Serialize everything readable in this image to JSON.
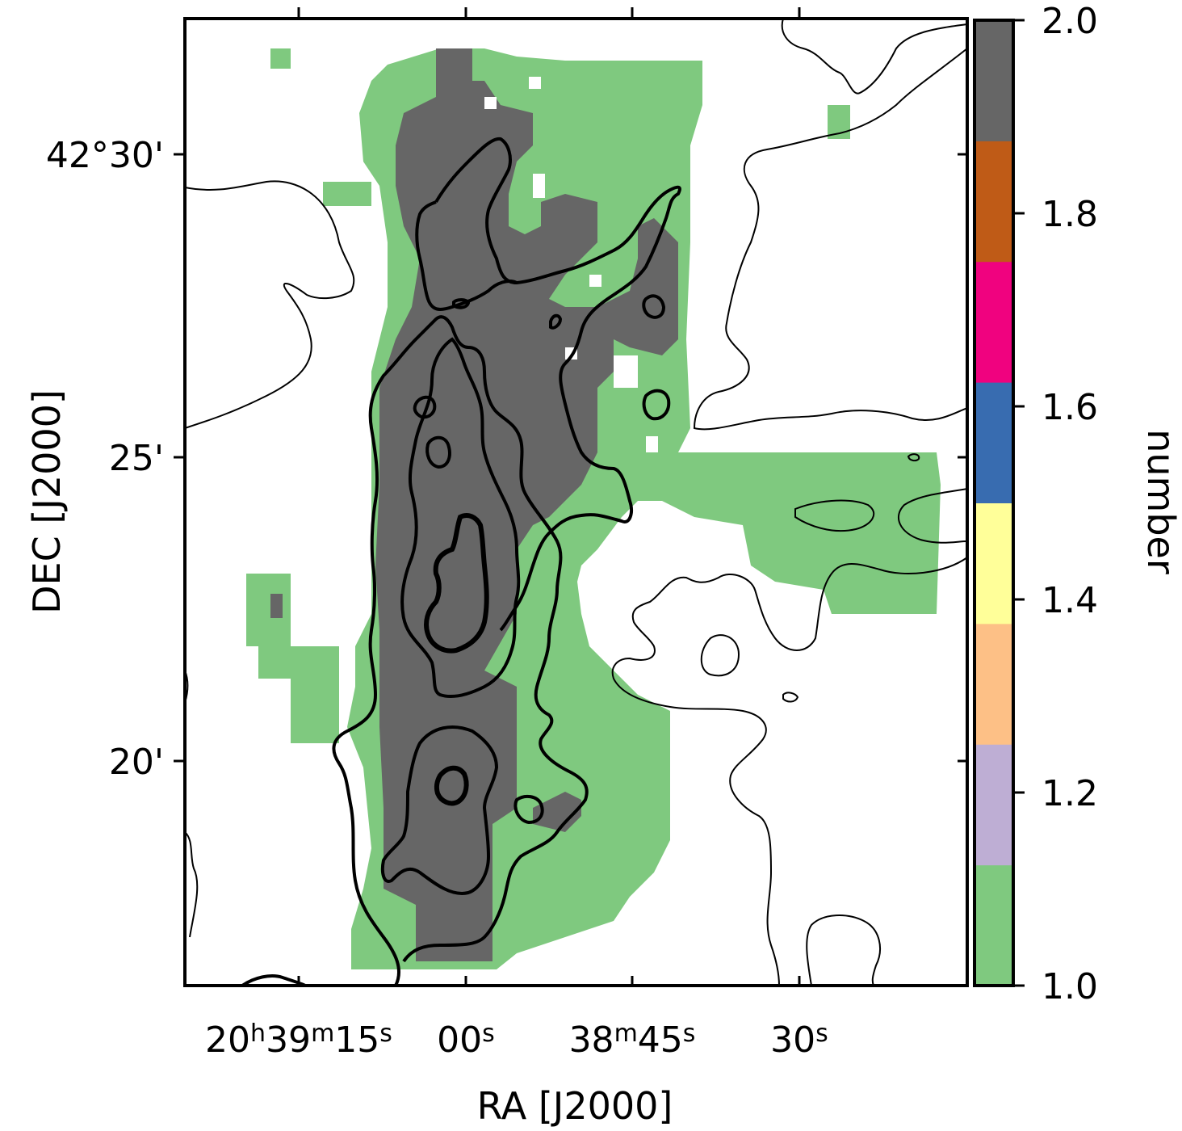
{
  "chart_data": {
    "type": "heatmap",
    "title": "",
    "xlabel": "RA [J2000]",
    "ylabel": "DEC [J2000]",
    "x_ticks": [
      {
        "label": "20h39m15s",
        "parts": [
          [
            "20",
            ""
          ],
          [
            "h",
            "sup"
          ],
          [
            "39",
            ""
          ],
          [
            "m",
            "sup"
          ],
          [
            "15",
            ""
          ],
          [
            "s",
            "sup"
          ]
        ]
      },
      {
        "label": "00s",
        "parts": [
          [
            "00",
            ""
          ],
          [
            "s",
            "sup"
          ]
        ]
      },
      {
        "label": "38m45s",
        "parts": [
          [
            "38",
            ""
          ],
          [
            "m",
            "sup"
          ],
          [
            "45",
            ""
          ],
          [
            "s",
            "sup"
          ]
        ]
      },
      {
        "label": "30s",
        "parts": [
          [
            "30",
            ""
          ],
          [
            "s",
            "sup"
          ]
        ]
      }
    ],
    "y_ticks": [
      "42°30'",
      "25'",
      "20'"
    ],
    "colorbar": {
      "label": "number",
      "range": [
        1.0,
        2.0
      ],
      "ticks": [
        "1.0",
        "1.2",
        "1.4",
        "1.6",
        "1.8",
        "2.0"
      ],
      "colors": [
        "#7fc97f",
        "#beaed4",
        "#fdc086",
        "#ffff99",
        "#386cb0",
        "#f0027f",
        "#bf5b17",
        "#666666"
      ]
    },
    "map_values": {
      "1": "#7fc97f",
      "2": "#666666"
    }
  }
}
